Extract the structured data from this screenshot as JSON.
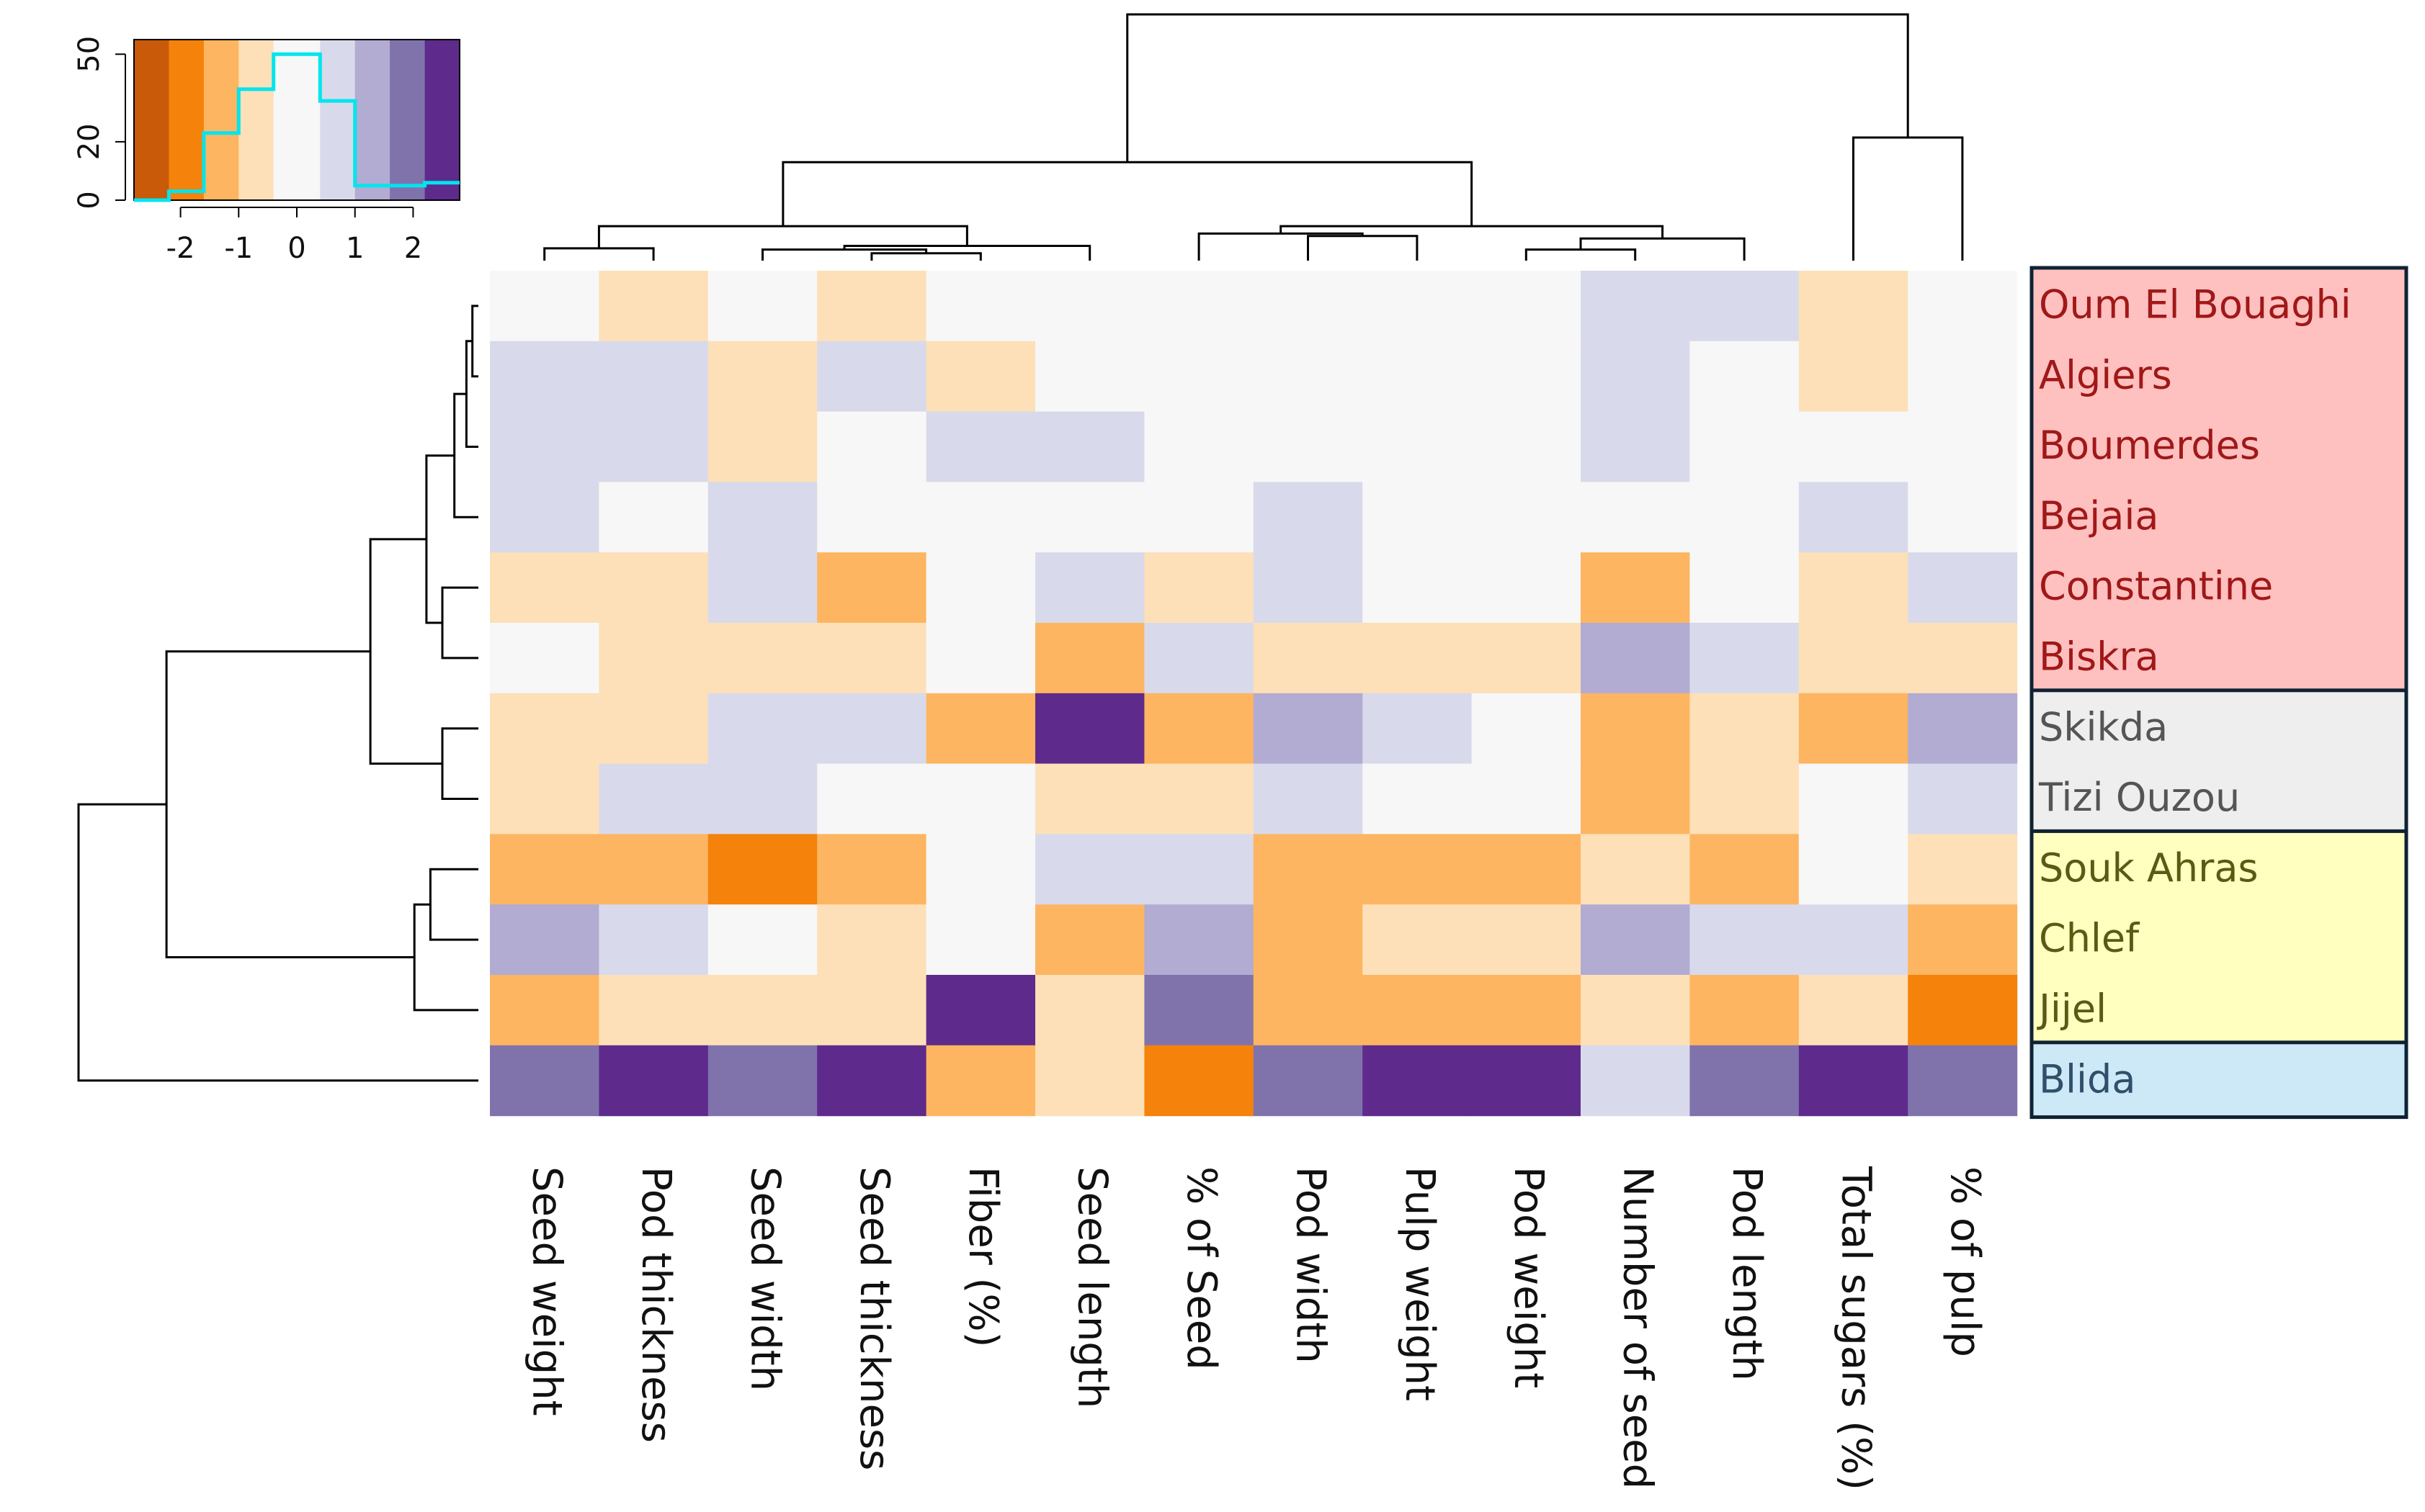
{
  "chart_data": {
    "type": "heatmap",
    "title": "",
    "xlabel": "",
    "ylabel": "",
    "columns": [
      "Seed weight",
      "Pod thickness",
      "Seed width",
      "Seed thickness",
      "Fiber (%)",
      "Seed length",
      "% of Seed",
      "Pod width",
      "Pulp weight",
      "Pod weight",
      "Number of seed",
      "Pod length",
      "Total sugars (%)",
      "% of pulp"
    ],
    "rows": [
      "Oum El Bouaghi",
      "Algiers",
      "Boumerdes",
      "Bejaia",
      "Constantine",
      "Biskra",
      "Skikda",
      "Tizi Ouzou",
      "Souk Ahras",
      "Chlef",
      "Jijel",
      "Blida"
    ],
    "values": [
      [
        0,
        -0.5,
        0,
        -0.5,
        0,
        0,
        0,
        0,
        0,
        0,
        0.5,
        0.5,
        -0.5,
        0
      ],
      [
        0.5,
        0.5,
        -0.5,
        0.5,
        -0.5,
        0,
        0,
        0,
        0,
        0,
        0.5,
        0,
        -0.5,
        0
      ],
      [
        0.5,
        0.5,
        -0.5,
        0,
        0.5,
        0.5,
        0,
        0,
        0,
        0,
        0.5,
        0,
        0,
        0
      ],
      [
        0.5,
        0,
        0.5,
        0,
        0,
        0,
        0,
        0.5,
        0,
        0,
        0,
        0,
        0.5,
        0
      ],
      [
        -0.5,
        -0.5,
        0.5,
        -1.25,
        0,
        0.5,
        -0.5,
        0.5,
        0,
        0,
        -1.25,
        0,
        -0.5,
        0.5
      ],
      [
        0,
        -0.5,
        -0.5,
        -0.5,
        0,
        -1.25,
        0.5,
        -0.5,
        -0.5,
        -0.5,
        1.25,
        0.5,
        -0.5,
        -0.5
      ],
      [
        -0.5,
        -0.5,
        0.5,
        0.5,
        -1.25,
        2.75,
        -1.25,
        1.25,
        0.5,
        0,
        -1.25,
        -0.5,
        -1.25,
        1.25
      ],
      [
        -0.5,
        0.5,
        0.5,
        0,
        0,
        -0.5,
        -0.5,
        0.5,
        0,
        0,
        -1.25,
        -0.5,
        0,
        0.5
      ],
      [
        -1.25,
        -1.25,
        -2,
        -1.25,
        0,
        0.5,
        0.5,
        -1.25,
        -1.25,
        -1.25,
        -0.5,
        -1.25,
        0,
        -0.5
      ],
      [
        1.25,
        0.5,
        0,
        -0.5,
        0,
        -1.25,
        1.25,
        -1.25,
        -0.5,
        -0.5,
        1.25,
        0.5,
        0.5,
        -1.25
      ],
      [
        -1.25,
        -0.5,
        -0.5,
        -0.5,
        2.75,
        -0.5,
        2,
        -1.25,
        -1.25,
        -1.25,
        -0.5,
        -1.25,
        -0.5,
        -2
      ],
      [
        2,
        2.75,
        2,
        2.75,
        -1.25,
        -0.5,
        -2,
        2,
        2.75,
        2.75,
        0.5,
        2,
        2.75,
        2
      ]
    ],
    "color_key": {
      "x_ticks": [
        -2,
        -1,
        0,
        1,
        2
      ],
      "y_ticks": [
        0,
        20,
        50
      ],
      "xlim": [
        -2.8,
        2.8
      ],
      "ylim": [
        0,
        55
      ],
      "breaks": [
        -2.8,
        -2.2,
        -1.6,
        -1.0,
        -0.4,
        0.4,
        1.0,
        1.6,
        2.2,
        2.8
      ],
      "colors": [
        "#c85a0a",
        "#f5820a",
        "#fdb561",
        "#fde0b8",
        "#f7f7f7",
        "#d8daeb",
        "#b2abd2",
        "#8073ac",
        "#5e2a8c"
      ],
      "histogram_step": [
        [
          -2.8,
          0
        ],
        [
          -2.2,
          3
        ],
        [
          -1.6,
          23
        ],
        [
          -1.0,
          38
        ],
        [
          -0.4,
          50
        ],
        [
          0.4,
          34
        ],
        [
          1.0,
          5
        ],
        [
          1.6,
          5
        ],
        [
          2.2,
          6
        ],
        [
          2.8,
          6
        ]
      ],
      "histogram_color": "#00e5ee"
    },
    "groups": [
      {
        "rows": [
          "Oum El Bouaghi",
          "Algiers",
          "Boumerdes",
          "Bejaia",
          "Constantine",
          "Biskra"
        ],
        "fill": "#ffc0c0",
        "text_color": "#a01818"
      },
      {
        "rows": [
          "Skikda",
          "Tizi Ouzou"
        ],
        "fill": "#eeeeee",
        "text_color": "#555555"
      },
      {
        "rows": [
          "Souk Ahras",
          "Chlef",
          "Jijel"
        ],
        "fill": "#ffffc0",
        "text_color": "#5a5a14"
      },
      {
        "rows": [
          "Blida"
        ],
        "fill": "#cde8f6",
        "text_color": "#2f4f6a"
      }
    ],
    "grid": false,
    "legend_position": "top-left"
  }
}
